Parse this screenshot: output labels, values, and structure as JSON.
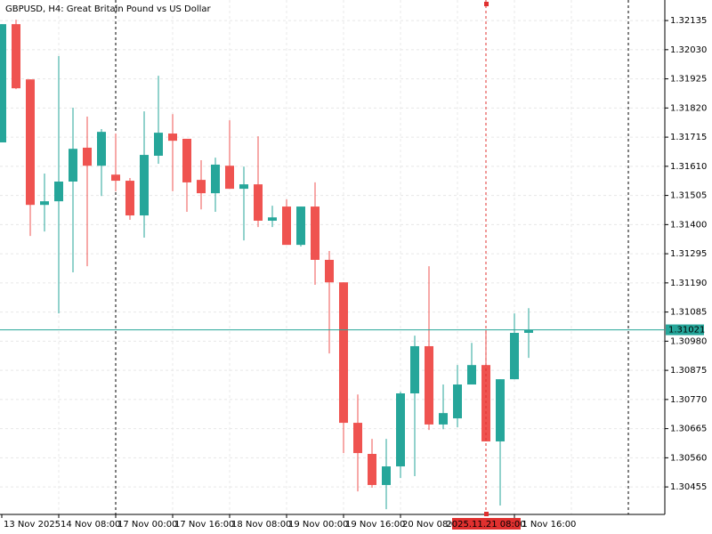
{
  "chart_data": {
    "type": "candlestick",
    "title": "GBPUSD, H4:  Great Britain Pound vs US Dollar",
    "categories": [
      "13 Nov 2025",
      null,
      null,
      null,
      "14 Nov 08:00",
      null,
      null,
      null,
      "17 Nov 00:00",
      null,
      null,
      null,
      "17 Nov 16:00",
      null,
      null,
      null,
      "18 Nov 08:00",
      null,
      null,
      null,
      "19 Nov 00:00",
      null,
      null,
      null,
      "19 Nov 16:00",
      null,
      null,
      null,
      "20 Nov 08:00",
      null,
      null,
      null,
      null,
      null,
      null,
      null,
      "21 Nov 16:00",
      null
    ],
    "open": [
      1.31696,
      1.32122,
      1.31923,
      1.31471,
      1.31484,
      1.31555,
      1.31677,
      1.31612,
      1.3158,
      1.31558,
      1.31433,
      1.31648,
      1.31728,
      1.31709,
      1.31561,
      1.31513,
      1.31612,
      1.31529,
      1.31545,
      1.31414,
      1.31465,
      1.31327,
      1.31465,
      1.31273,
      1.31192,
      1.30686,
      1.30574,
      1.30462,
      1.30529,
      1.30792,
      1.30962,
      1.3068,
      1.30702,
      1.30824,
      1.30894,
      1.30619,
      1.30843,
      1.3101
    ],
    "high": [
      1.32122,
      1.32138,
      1.31923,
      1.31584,
      1.32007,
      1.31821,
      1.31789,
      1.31744,
      1.31728,
      1.31568,
      1.31808,
      1.31936,
      1.31798,
      1.31709,
      1.31632,
      1.31641,
      1.31776,
      1.31609,
      1.31718,
      1.31468,
      1.31491,
      1.31465,
      1.31552,
      1.31305,
      1.31192,
      1.30788,
      1.30628,
      1.30628,
      1.30798,
      1.31,
      1.3125,
      1.30824,
      1.30894,
      1.30974,
      1.31022,
      1.30843,
      1.3108,
      1.31099
    ],
    "low": [
      1.31696,
      1.31888,
      1.31359,
      1.31375,
      1.3108,
      1.31228,
      1.3125,
      1.31503,
      1.3152,
      1.31417,
      1.31353,
      1.31619,
      1.3152,
      1.31446,
      1.31455,
      1.31446,
      1.31529,
      1.31343,
      1.31391,
      1.31391,
      1.31327,
      1.31321,
      1.31183,
      1.30936,
      1.30577,
      1.30439,
      1.30452,
      1.30375,
      1.30487,
      1.30494,
      1.3066,
      1.30663,
      1.3067,
      1.30824,
      1.30619,
      1.30388,
      1.30843,
      1.3092
    ],
    "close": [
      1.32122,
      1.31891,
      1.31471,
      1.31484,
      1.31555,
      1.31673,
      1.31612,
      1.31734,
      1.31558,
      1.31433,
      1.31651,
      1.31731,
      1.31702,
      1.31552,
      1.31513,
      1.31616,
      1.31529,
      1.31545,
      1.31414,
      1.31426,
      1.31327,
      1.31465,
      1.31273,
      1.31192,
      1.30686,
      1.30577,
      1.30462,
      1.30529,
      1.30792,
      1.30962,
      1.3068,
      1.30721,
      1.30824,
      1.30894,
      1.30619,
      1.30843,
      1.3101,
      1.31021
    ],
    "up_color": "#26a69a",
    "down_color": "#ef5350",
    "ylim": [
      1.30356,
      1.32209
    ],
    "yticks": [
      1.32135,
      {
        "value": 1.3203,
        "label": "1.32030"
      },
      1.31925,
      {
        "value": 1.3182,
        "label": "1.31820"
      },
      1.31715,
      {
        "value": 1.3161,
        "label": "1.31610"
      },
      1.31505,
      {
        "value": 1.314,
        "label": "1.31400"
      },
      1.31295,
      {
        "value": 1.3119,
        "label": "1.31190"
      },
      1.31085,
      {
        "value": 1.3098,
        "label": "1.30980"
      },
      1.30875,
      {
        "value": 1.3077,
        "label": "1.30770"
      },
      1.30665,
      {
        "value": 1.3056,
        "label": "1.30560"
      },
      1.30455
    ],
    "grid": true,
    "last_price": 1.31021,
    "last_price_color": "#26a69a",
    "crosshair_label": "2025.11.21 08:00",
    "crosshair_color": "#e0302f"
  }
}
